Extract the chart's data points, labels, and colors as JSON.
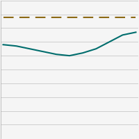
{
  "dashed_line": {
    "x": [
      0,
      1,
      2,
      3,
      4,
      5,
      6,
      7,
      8,
      9,
      10
    ],
    "y": [
      88,
      88,
      88,
      88,
      88,
      88,
      88,
      88,
      88,
      88,
      88
    ],
    "color": "#8B6914",
    "linewidth": 1.5,
    "dashes": [
      7,
      4
    ]
  },
  "solid_line": {
    "x": [
      0,
      1,
      2,
      3,
      4,
      5,
      6,
      7,
      8,
      9,
      10
    ],
    "y": [
      68,
      67,
      65,
      63,
      61,
      60,
      62,
      65,
      70,
      75,
      77
    ],
    "color": "#006D6D",
    "linewidth": 1.5
  },
  "ylim": [
    0,
    100
  ],
  "xlim": [
    -0.2,
    10.2
  ],
  "yticks": [
    0,
    10,
    20,
    30,
    40,
    50,
    60,
    70,
    80,
    90,
    100
  ],
  "background_color": "#f5f5f5",
  "grid_color": "#c8c8c8",
  "grid_linewidth": 0.6
}
